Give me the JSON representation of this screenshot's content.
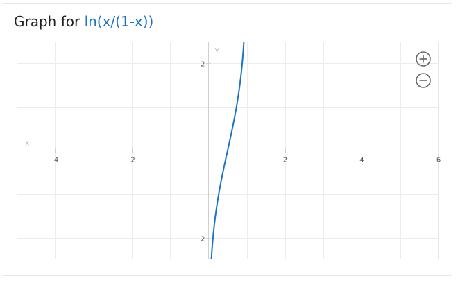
{
  "header": {
    "title_prefix": "Graph for ",
    "expression": "ln(x/(1-x))"
  },
  "controls": {
    "zoom_in_icon": "plus-circle-icon",
    "zoom_out_icon": "minus-circle-icon"
  },
  "colors": {
    "curve": "#1a73c8",
    "grid": "#ececec",
    "axis": "#cfcfcf",
    "tick_text": "#555555",
    "axis_label": "#bbbbbb",
    "icon": "#666666"
  },
  "chart_data": {
    "type": "line",
    "function": "ln(x/(1-x))",
    "xlabel": "x",
    "ylabel": "y",
    "xlim": [
      -5,
      6
    ],
    "ylim": [
      -2.5,
      2.5
    ],
    "x_ticks": [
      -4,
      -2,
      2,
      4,
      6
    ],
    "x_tick_labels": [
      "-4",
      "-2",
      "2",
      "4",
      "6"
    ],
    "y_ticks": [
      -2,
      2
    ],
    "y_tick_labels": [
      "-2",
      "2"
    ],
    "grid": true,
    "series": [
      {
        "x": [
          0.076,
          0.1,
          0.15,
          0.2,
          0.25,
          0.3,
          0.35,
          0.4,
          0.45,
          0.5,
          0.55,
          0.6,
          0.65,
          0.7,
          0.75,
          0.8,
          0.85,
          0.9,
          0.924
        ],
        "y": [
          -2.5,
          -2.197,
          -1.735,
          -1.386,
          -1.099,
          -0.847,
          -0.619,
          -0.405,
          -0.201,
          0.0,
          0.201,
          0.405,
          0.619,
          0.847,
          1.099,
          1.386,
          1.735,
          2.197,
          2.5
        ]
      }
    ]
  }
}
